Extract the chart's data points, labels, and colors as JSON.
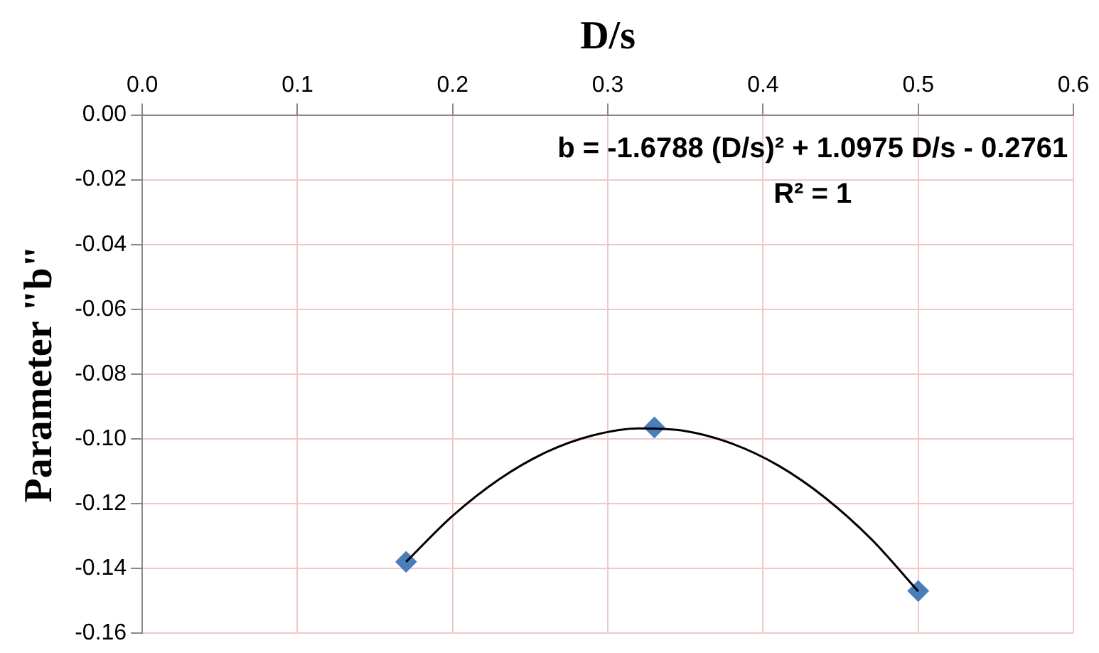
{
  "chart_data": {
    "type": "scatter",
    "xlabel": "D/s",
    "ylabel": "Parameter \"b\"",
    "xlim": [
      0,
      0.6
    ],
    "xticks": [
      {
        "value": 0,
        "label": "0.0"
      },
      {
        "value": 0.1,
        "label": "0.1"
      },
      {
        "value": 0.2,
        "label": "0.2"
      },
      {
        "value": 0.3,
        "label": "0.3"
      },
      {
        "value": 0.4,
        "label": "0.4"
      },
      {
        "value": 0.5,
        "label": "0.5"
      },
      {
        "value": 0.6,
        "label": "0.6"
      }
    ],
    "ylim": [
      -0.16,
      0
    ],
    "yticks": [
      {
        "value": -0.16,
        "label": "-0.16"
      },
      {
        "value": -0.14,
        "label": "-0.14"
      },
      {
        "value": -0.12,
        "label": "-0.12"
      },
      {
        "value": -0.1,
        "label": "-0.10"
      },
      {
        "value": -0.08,
        "label": "-0.08"
      },
      {
        "value": -0.06,
        "label": "-0.06"
      },
      {
        "value": -0.04,
        "label": "-0.04"
      },
      {
        "value": -0.02,
        "label": "-0.02"
      },
      {
        "value": 0,
        "label": "0.00"
      }
    ],
    "grid": true,
    "legend": false,
    "series": [
      {
        "color": "#4a7ebb",
        "marker": "diamond",
        "x": [
          0.17,
          0.33,
          0.5
        ],
        "values": [
          -0.138,
          -0.0965,
          -0.147
        ]
      },
      {
        "type": "line",
        "color": "#000000",
        "marker": "none",
        "line_style": "solid",
        "x": [
          0.17,
          0.2,
          0.23,
          0.26,
          0.29,
          0.32,
          0.35,
          0.38,
          0.41,
          0.44,
          0.47,
          0.5
        ],
        "values": [
          -0.138,
          -0.1238,
          -0.1125,
          -0.1042,
          -0.099,
          -0.0968,
          -0.0976,
          -0.1015,
          -0.1083,
          -0.1182,
          -0.1311,
          -0.1471
        ]
      }
    ],
    "annotations": [
      "b = -1.6788 (D/s)² + 1.0975 D/s - 0.2761",
      "R² = 1"
    ]
  }
}
